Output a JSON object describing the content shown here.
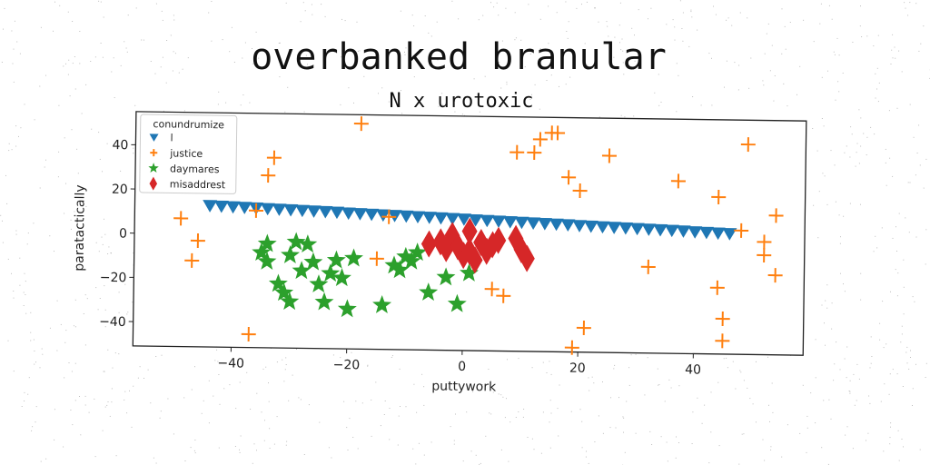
{
  "chart_data": {
    "type": "scatter",
    "title": "overbanked branular",
    "subtitle": "N x urotoxic",
    "xlabel": "puttywork",
    "ylabel": "paratactically",
    "xlim": [
      -57,
      59
    ],
    "ylim": [
      -51,
      55
    ],
    "xticks": [
      -40,
      -20,
      0,
      20,
      40
    ],
    "yticks": [
      -40,
      -20,
      0,
      20,
      40
    ],
    "grid": false,
    "legend": {
      "title": "conundrumize",
      "position": "top-left"
    },
    "series": [
      {
        "name": "l",
        "marker": "triangle-down",
        "color": "#1f77b4",
        "points": [
          [
            -44,
            13
          ],
          [
            -42,
            12.8
          ],
          [
            -40,
            12.6
          ],
          [
            -38,
            12.4
          ],
          [
            -36,
            12.2
          ],
          [
            -34,
            12
          ],
          [
            -32,
            11.8
          ],
          [
            -30,
            11.6
          ],
          [
            -28,
            11.4
          ],
          [
            -26,
            11.2
          ],
          [
            -24,
            11
          ],
          [
            -22,
            10.8
          ],
          [
            -20,
            10.5
          ],
          [
            -18,
            10.3
          ],
          [
            -16,
            10.1
          ],
          [
            -14,
            9.9
          ],
          [
            -12,
            9.7
          ],
          [
            -10,
            9.5
          ],
          [
            -8,
            9.3
          ],
          [
            -6,
            9.1
          ],
          [
            -4,
            8.9
          ],
          [
            -2,
            8.7
          ],
          [
            0,
            8.5
          ],
          [
            2,
            8.2
          ],
          [
            4,
            8
          ],
          [
            6,
            7.8
          ],
          [
            8,
            7.6
          ],
          [
            10,
            7.4
          ],
          [
            12,
            7.2
          ],
          [
            14,
            7
          ],
          [
            16,
            6.8
          ],
          [
            18,
            6.6
          ],
          [
            20,
            6.3
          ],
          [
            22,
            6.1
          ],
          [
            24,
            5.9
          ],
          [
            26,
            5.7
          ],
          [
            28,
            5.5
          ],
          [
            30,
            5.3
          ],
          [
            32,
            5.1
          ],
          [
            34,
            4.9
          ],
          [
            36,
            4.7
          ],
          [
            38,
            4.5
          ],
          [
            40,
            4.2
          ],
          [
            42,
            4
          ],
          [
            44,
            3.8
          ],
          [
            46,
            3.6
          ]
        ]
      },
      {
        "name": "justice",
        "marker": "plus",
        "color": "#ff7f0e",
        "points": [
          [
            -18,
            51
          ],
          [
            -33,
            35
          ],
          [
            -34,
            27
          ],
          [
            -36,
            11
          ],
          [
            -49,
            7
          ],
          [
            -46,
            -3
          ],
          [
            -47,
            -12
          ],
          [
            -37,
            -45
          ],
          [
            -15,
            -10
          ],
          [
            -13,
            9
          ],
          [
            5,
            -23
          ],
          [
            7,
            -26
          ],
          [
            9,
            39
          ],
          [
            12,
            39
          ],
          [
            13,
            45
          ],
          [
            15,
            48
          ],
          [
            16,
            48
          ],
          [
            18,
            28
          ],
          [
            20,
            22
          ],
          [
            25,
            38
          ],
          [
            19,
            -49
          ],
          [
            21,
            -40
          ],
          [
            32,
            -12
          ],
          [
            37,
            27
          ],
          [
            44,
            20
          ],
          [
            48,
            5
          ],
          [
            49,
            44
          ],
          [
            52,
            0
          ],
          [
            52,
            -6
          ],
          [
            54,
            12
          ],
          [
            54,
            -15
          ],
          [
            44,
            -21
          ],
          [
            45,
            -35
          ],
          [
            45,
            -45
          ]
        ]
      },
      {
        "name": "daymares",
        "marker": "star",
        "color": "#2ca02c",
        "points": [
          [
            -34,
            -4
          ],
          [
            -35,
            -8
          ],
          [
            -34,
            -12
          ],
          [
            -32,
            -22
          ],
          [
            -31,
            -26
          ],
          [
            -30,
            -30
          ],
          [
            -29,
            -3
          ],
          [
            -30,
            -9
          ],
          [
            -28,
            -16
          ],
          [
            -27,
            -4
          ],
          [
            -26,
            -12
          ],
          [
            -25,
            -22
          ],
          [
            -24,
            -30
          ],
          [
            -23,
            -17
          ],
          [
            -22,
            -11
          ],
          [
            -21,
            -19
          ],
          [
            -20,
            -33
          ],
          [
            -19,
            -10
          ],
          [
            -14,
            -31
          ],
          [
            -12,
            -13
          ],
          [
            -11,
            -15
          ],
          [
            -10,
            -9
          ],
          [
            -9,
            -11
          ],
          [
            -8,
            -7
          ],
          [
            -6,
            -25
          ],
          [
            -3,
            -18
          ],
          [
            -1,
            -30
          ],
          [
            1,
            -16
          ]
        ]
      },
      {
        "name": "misaddrest",
        "marker": "diamond",
        "color": "#d62728",
        "points": [
          [
            -6,
            -3
          ],
          [
            -4,
            -2
          ],
          [
            -3,
            -5
          ],
          [
            -2,
            1
          ],
          [
            -1,
            -4
          ],
          [
            0,
            -8
          ],
          [
            1,
            3
          ],
          [
            1,
            -6
          ],
          [
            2,
            -10
          ],
          [
            3,
            -2
          ],
          [
            4,
            -6
          ],
          [
            5,
            -3
          ],
          [
            6,
            -1
          ],
          [
            9,
            0
          ],
          [
            10,
            -5
          ],
          [
            11,
            -9
          ]
        ]
      }
    ]
  }
}
